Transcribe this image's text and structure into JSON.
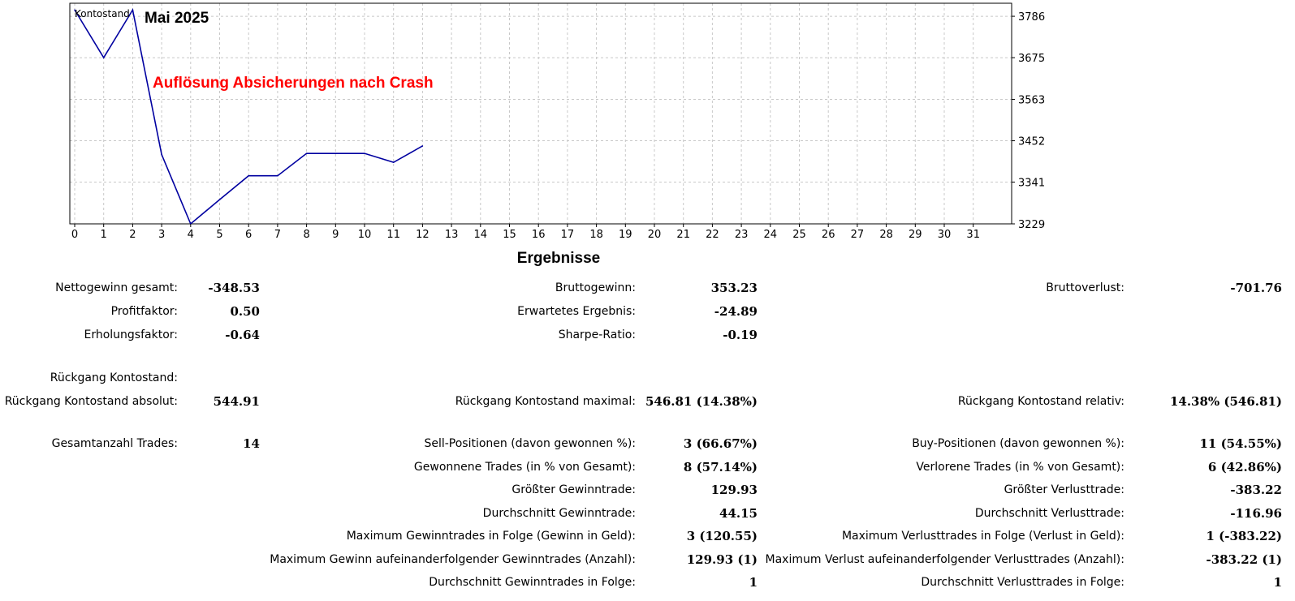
{
  "chart_data": {
    "type": "line",
    "title": "Mai 2025",
    "series_label": "Kontostand",
    "annotation": "Auflösung Absicherungen nach Crash",
    "x": [
      0,
      1,
      2,
      3,
      4,
      5,
      6,
      7,
      8,
      9,
      10,
      11,
      12
    ],
    "series": [
      {
        "name": "Kontostand",
        "color": "#0000a0",
        "values": [
          3803,
          3675,
          3803,
          3415,
          3229,
          3294,
          3358,
          3358,
          3418,
          3418,
          3418,
          3394,
          3438
        ]
      }
    ],
    "xticks": [
      "0",
      "1",
      "2",
      "3",
      "4",
      "5",
      "6",
      "7",
      "8",
      "9",
      "10",
      "11",
      "12",
      "13",
      "14",
      "15",
      "16",
      "17",
      "18",
      "19",
      "20",
      "21",
      "22",
      "23",
      "24",
      "25",
      "26",
      "27",
      "28",
      "29",
      "30",
      "31"
    ],
    "yticks": [
      "3229",
      "3341",
      "3452",
      "3563",
      "3675",
      "3786"
    ],
    "xlim": [
      0,
      32
    ],
    "ylim": [
      3229,
      3821
    ],
    "grid": true
  },
  "results": {
    "title": "Ergebnisse",
    "net_profit_label": "Nettogewinn gesamt:",
    "net_profit_value": "-348.53",
    "gross_profit_label": "Bruttogewinn:",
    "gross_profit_value": "353.23",
    "gross_loss_label": "Bruttoverlust:",
    "gross_loss_value": "-701.76",
    "profit_factor_label": "Profitfaktor:",
    "profit_factor_value": "0.50",
    "expected_payoff_label": "Erwartetes Ergebnis:",
    "expected_payoff_value": "-24.89",
    "recovery_factor_label": "Erholungsfaktor:",
    "recovery_factor_value": "-0.64",
    "sharpe_label": "Sharpe-Ratio:",
    "sharpe_value": "-0.19",
    "drawdown_header_label": "Rückgang Kontostand:",
    "drawdown_abs_label": "Rückgang Kontostand absolut:",
    "drawdown_abs_value": "544.91",
    "drawdown_max_label": "Rückgang Kontostand maximal:",
    "drawdown_max_value": "546.81 (14.38%)",
    "drawdown_rel_label": "Rückgang Kontostand relativ:",
    "drawdown_rel_value": "14.38% (546.81)",
    "total_trades_label": "Gesamtanzahl Trades:",
    "total_trades_value": "14",
    "sell_label": "Sell-Positionen (davon gewonnen %):",
    "sell_value": "3 (66.67%)",
    "buy_label": "Buy-Positionen (davon gewonnen %):",
    "buy_value": "11 (54.55%)",
    "won_label": "Gewonnene Trades (in % von Gesamt):",
    "won_value": "8 (57.14%)",
    "lost_label": "Verlorene Trades (in % von Gesamt):",
    "lost_value": "6 (42.86%)",
    "largest_win_label": "Größter Gewinntrade:",
    "largest_win_value": "129.93",
    "largest_loss_label": "Größter Verlusttrade:",
    "largest_loss_value": "-383.22",
    "avg_win_label": "Durchschnitt Gewinntrade:",
    "avg_win_value": "44.15",
    "avg_loss_label": "Durchschnitt Verlusttrade:",
    "avg_loss_value": "-116.96",
    "max_cons_wins_label": "Maximum Gewinntrades in Folge (Gewinn in Geld):",
    "max_cons_wins_value": "3 (120.55)",
    "max_cons_losses_label": "Maximum Verlusttrades in Folge (Verlust in Geld):",
    "max_cons_losses_value": "1 (-383.22)",
    "max_cons_profit_label": "Maximum Gewinn aufeinanderfolgender Gewinntrades (Anzahl):",
    "max_cons_profit_value": "129.93 (1)",
    "max_cons_loss_label": "Maximum Verlust aufeinanderfolgender Verlusttrades (Anzahl):",
    "max_cons_loss_value": "-383.22 (1)",
    "avg_cons_wins_label": "Durchschnitt Gewinntrades in Folge:",
    "avg_cons_wins_value": "1",
    "avg_cons_losses_label": "Durchschnitt Verlusttrades in Folge:",
    "avg_cons_losses_value": "1"
  }
}
